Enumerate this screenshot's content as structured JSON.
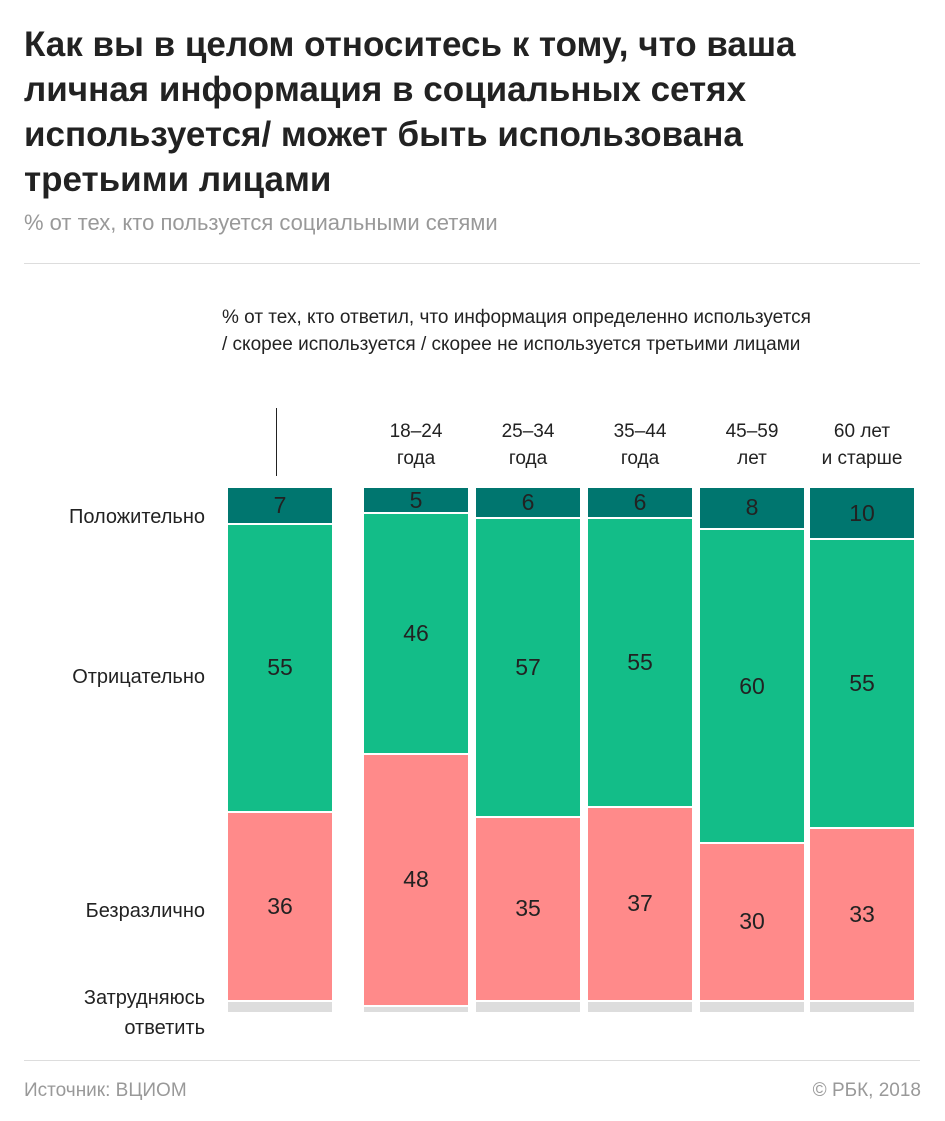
{
  "title": "Как вы в целом относитесь к тому, что ваша личная информация в социальных сетях используется/ может быть использована третьими лицами",
  "subtitle": "% от тех, кто пользуется социальными сетями",
  "source": "Источник: ВЦИОМ",
  "copyright": "© РБК, 2018",
  "chart_data": {
    "type": "bar",
    "stacked": true,
    "note": "% от тех, кто ответил, что информация определенно используется / скорее используется / скорее не используется третьими лицами",
    "categories": [
      "",
      "18–24\nгода",
      "25–34\nгода",
      "35–44\nгода",
      "45–59\nлет",
      "60 лет\nи старше"
    ],
    "series": [
      {
        "name": "Положительно",
        "color": "#00766f",
        "values": [
          7,
          5,
          6,
          6,
          8,
          10
        ]
      },
      {
        "name": "Отрицательно",
        "color": "#13bd88",
        "values": [
          55,
          46,
          57,
          55,
          60,
          55
        ]
      },
      {
        "name": "Безразлично",
        "color": "#ff8a8a",
        "values": [
          36,
          48,
          35,
          37,
          30,
          33
        ]
      },
      {
        "name": "Затрудняюсь\nответить",
        "color": "#dddddd",
        "values": [
          2,
          1,
          2,
          2,
          2,
          2
        ],
        "labels_shown": false
      }
    ],
    "ylim": [
      0,
      100
    ]
  }
}
